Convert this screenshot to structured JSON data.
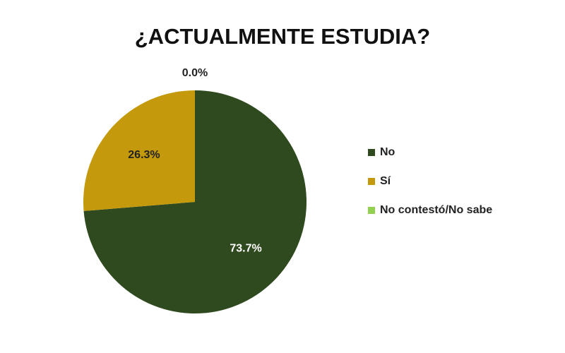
{
  "chart_data": {
    "type": "pie",
    "title": "¿ACTUALMENTE ESTUDIA?",
    "categories": [
      "No",
      "Sí",
      "No contestó/No sabe"
    ],
    "values": [
      73.7,
      26.3,
      0.0
    ],
    "value_labels": [
      "73.7%",
      "26.3%",
      "0.0%"
    ],
    "colors": [
      "#2f4a1e",
      "#c49a0c",
      "#92d050"
    ],
    "legend": "right"
  }
}
